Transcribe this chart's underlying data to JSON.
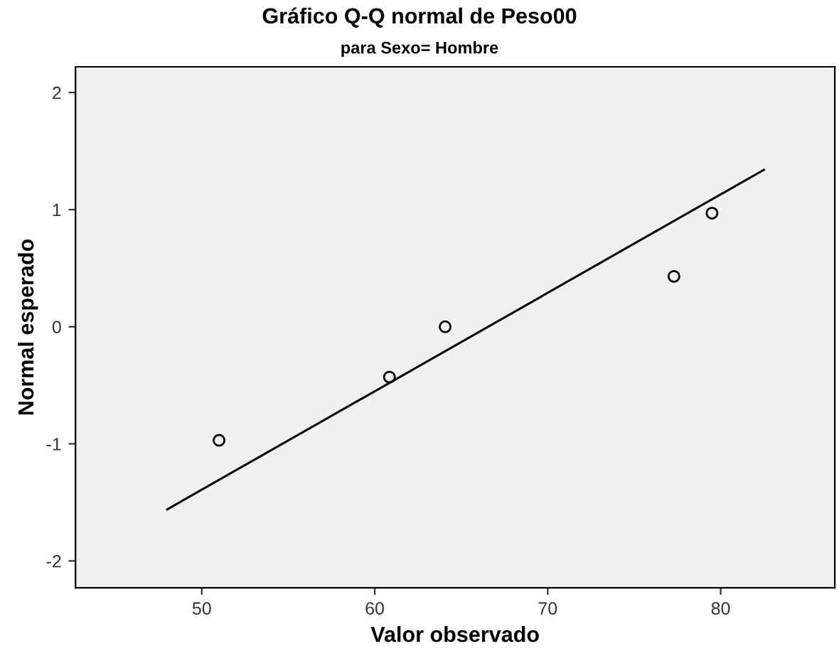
{
  "chart_data": {
    "type": "scatter",
    "title": "Gráfico Q-Q normal de Peso00",
    "subtitle": "para Sexo= Hombre",
    "xlabel": "Valor observado",
    "ylabel": "Normal esperado",
    "series": [
      {
        "color": "#000000",
        "marker": "circle",
        "x": [
          51.0,
          60.85,
          64.07,
          77.3,
          79.5
        ],
        "values": [
          -0.97,
          -0.43,
          0.0,
          0.43,
          0.97
        ]
      },
      {
        "type": "line",
        "color": "#000000",
        "marker": "none",
        "line_style": "solid",
        "x": [
          48.0,
          82.5
        ],
        "values": [
          -1.56,
          1.34
        ]
      }
    ],
    "xlim": [
      42.7,
      86.6
    ],
    "ylim": [
      -2.23,
      2.22
    ],
    "xticks": [
      50,
      60,
      70,
      80
    ],
    "yticks": [
      -2,
      -1,
      0,
      1,
      2
    ],
    "grid": false,
    "legend": false
  }
}
